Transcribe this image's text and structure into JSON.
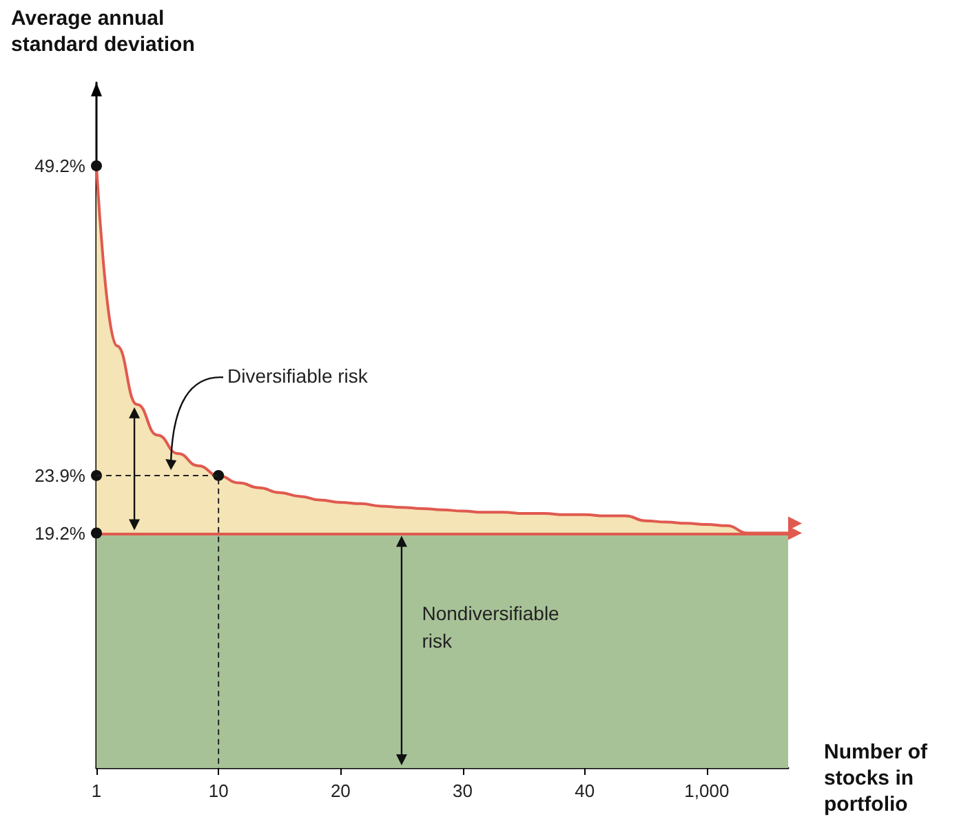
{
  "chart_data": {
    "type": "area",
    "ylabel": "Average annual standard deviation",
    "xlabel": "Number of stocks in portfolio",
    "categories": [
      "1",
      null,
      null,
      null,
      null,
      null,
      "10",
      null,
      null,
      null,
      null,
      null,
      "20",
      null,
      null,
      null,
      null,
      null,
      "30",
      null,
      null,
      null,
      null,
      null,
      "40",
      null,
      null,
      null,
      null,
      null,
      "1,000",
      null,
      null,
      null,
      null
    ],
    "series": [
      {
        "color": "#e05a4f",
        "values": [
          49.2,
          34.5,
          29.7,
          27.2,
          25.7,
          24.7,
          23.9,
          23.3,
          22.9,
          22.5,
          22.2,
          21.9,
          21.7,
          21.6,
          21.4,
          21.3,
          21.2,
          21.1,
          21.0,
          20.9,
          20.9,
          20.8,
          20.8,
          20.7,
          20.7,
          20.6,
          20.6,
          20.2,
          20.1,
          20.0,
          19.9,
          19.8,
          19.2,
          19.2,
          19.2
        ]
      },
      {
        "type": "scatter",
        "x": [
          "1",
          "10",
          "1",
          "1"
        ],
        "values": [
          49.2,
          23.9,
          23.9,
          19.2
        ],
        "color": "#111111",
        "marker": "circle"
      }
    ],
    "ylim": [
      0,
      56
    ],
    "yticks": [
      {
        "value": 49.2,
        "label": "49.2%"
      },
      {
        "value": 23.9,
        "label": "23.9%"
      },
      {
        "value": 19.2,
        "label": "19.2%"
      }
    ],
    "ref_lines": [
      {
        "axis": "y",
        "value": 19.2,
        "color": "#e05a4f"
      }
    ],
    "bands": [
      {
        "axis": "y",
        "from": 0,
        "to": 19.2,
        "color": "#a8c298"
      }
    ],
    "annotations": [
      "Diversifiable risk",
      "Nondiversifiable risk"
    ],
    "grid": false
  }
}
